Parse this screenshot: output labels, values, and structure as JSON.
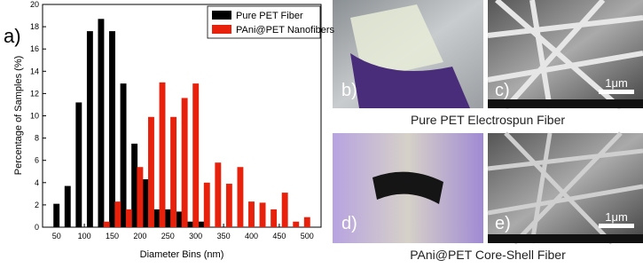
{
  "chart_data": {
    "type": "bar",
    "panel_label": "a)",
    "xlabel": "Diameter Bins (nm)",
    "ylabel": "Percentage of Samples (%)",
    "xlim": [
      25,
      525
    ],
    "ylim": [
      0,
      20
    ],
    "xticks": [
      50,
      100,
      150,
      200,
      250,
      300,
      350,
      400,
      450,
      500
    ],
    "yticks": [
      0,
      2,
      4,
      6,
      8,
      10,
      12,
      14,
      16,
      18,
      20
    ],
    "legend": "upper right",
    "series": [
      {
        "name": "Pure PET Fiber",
        "color": "#000000",
        "x": [
          50,
          70,
          90,
          110,
          130,
          150,
          170,
          190,
          210,
          230,
          250,
          270,
          290,
          310
        ],
        "values": [
          2.1,
          3.7,
          11.2,
          17.6,
          18.7,
          17.6,
          12.9,
          7.5,
          4.3,
          1.6,
          1.6,
          1.4,
          0.5,
          0.5
        ]
      },
      {
        "name": "PAni@PET Nanofibers",
        "color": "#e8210c",
        "x": [
          140,
          160,
          180,
          200,
          220,
          240,
          260,
          280,
          300,
          320,
          340,
          360,
          380,
          400,
          420,
          440,
          460,
          480,
          500
        ],
        "values": [
          0.5,
          2.3,
          1.6,
          5.4,
          9.9,
          13.0,
          9.9,
          11.6,
          12.9,
          4.0,
          5.8,
          3.9,
          5.4,
          2.3,
          2.2,
          1.6,
          3.1,
          0.5,
          0.9
        ]
      }
    ]
  },
  "panels": {
    "b": "b)",
    "c": "c)",
    "d": "d)",
    "e": "e)",
    "scale_c": "1μm",
    "scale_e": "1μm",
    "caption_top": "Pure PET Electrospun Fiber",
    "caption_bottom": "PAni@PET Core-Shell Fiber"
  }
}
